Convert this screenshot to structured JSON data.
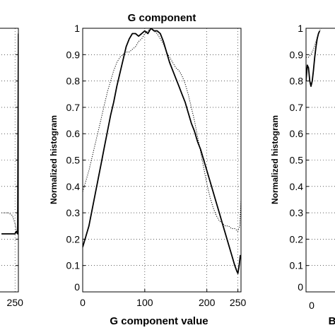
{
  "chart_data": [
    {
      "id": "left-partial",
      "type": "line",
      "title": "",
      "xlabel": "",
      "ylabel": "",
      "x_tick_labels": [
        "250"
      ],
      "xlim": [
        0,
        255
      ],
      "ylim": [
        0,
        1
      ],
      "grid": true,
      "series": [
        {
          "style": "solid",
          "x": [
            230,
            240,
            250,
            252,
            254,
            255
          ],
          "y": [
            0.22,
            0.22,
            0.22,
            0.23,
            0.22,
            0.98
          ]
        },
        {
          "style": "dotted",
          "x": [
            230,
            240,
            246,
            250,
            253
          ],
          "y": [
            0.3,
            0.3,
            0.29,
            0.26,
            0.22
          ]
        }
      ]
    },
    {
      "id": "g-component",
      "type": "line",
      "title": "G component",
      "xlabel": "G component value",
      "ylabel": "Normalized histogram",
      "x_ticks": [
        0,
        100,
        200,
        250
      ],
      "y_ticks": [
        0,
        0.1,
        0.2,
        0.3,
        0.4,
        0.5,
        0.6,
        0.7,
        0.8,
        0.9,
        1
      ],
      "xlim": [
        0,
        255
      ],
      "ylim": [
        0,
        1
      ],
      "grid": true,
      "series": [
        {
          "style": "solid",
          "x": [
            0,
            5,
            10,
            15,
            20,
            25,
            30,
            35,
            40,
            45,
            50,
            55,
            60,
            65,
            70,
            75,
            80,
            85,
            90,
            95,
            100,
            105,
            110,
            115,
            120,
            125,
            130,
            135,
            140,
            145,
            150,
            155,
            160,
            165,
            170,
            175,
            180,
            185,
            190,
            195,
            200,
            205,
            210,
            215,
            220,
            225,
            230,
            235,
            240,
            245,
            248,
            250,
            252,
            254
          ],
          "y": [
            0.17,
            0.21,
            0.25,
            0.31,
            0.37,
            0.43,
            0.49,
            0.55,
            0.61,
            0.67,
            0.72,
            0.78,
            0.83,
            0.88,
            0.93,
            0.96,
            0.98,
            0.98,
            0.97,
            0.98,
            0.99,
            0.98,
            1.0,
            0.99,
            0.99,
            0.98,
            0.95,
            0.91,
            0.87,
            0.84,
            0.81,
            0.78,
            0.75,
            0.72,
            0.68,
            0.64,
            0.61,
            0.57,
            0.54,
            0.5,
            0.46,
            0.42,
            0.38,
            0.34,
            0.3,
            0.26,
            0.22,
            0.18,
            0.14,
            0.1,
            0.08,
            0.07,
            0.1,
            0.14
          ]
        },
        {
          "style": "dotted",
          "x": [
            0,
            5,
            10,
            15,
            20,
            25,
            30,
            35,
            40,
            45,
            50,
            55,
            60,
            65,
            70,
            75,
            80,
            85,
            90,
            95,
            100,
            105,
            110,
            115,
            120,
            125,
            130,
            135,
            140,
            145,
            150,
            155,
            160,
            165,
            170,
            175,
            180,
            185,
            190,
            195,
            200,
            205,
            210,
            215,
            220,
            225,
            230,
            235,
            240,
            245,
            250,
            253,
            255
          ],
          "y": [
            0.38,
            0.42,
            0.46,
            0.51,
            0.56,
            0.61,
            0.66,
            0.71,
            0.76,
            0.8,
            0.84,
            0.87,
            0.89,
            0.9,
            0.91,
            0.91,
            0.92,
            0.93,
            0.95,
            0.96,
            0.98,
            0.99,
            1.0,
            0.99,
            0.98,
            0.96,
            0.94,
            0.91,
            0.89,
            0.87,
            0.85,
            0.84,
            0.82,
            0.79,
            0.75,
            0.7,
            0.65,
            0.59,
            0.53,
            0.47,
            0.41,
            0.36,
            0.32,
            0.29,
            0.27,
            0.26,
            0.25,
            0.25,
            0.24,
            0.24,
            0.23,
            0.25,
            0.35
          ]
        }
      ]
    },
    {
      "id": "b-partial",
      "type": "line",
      "title": "",
      "xlabel": "B",
      "ylabel": "Normalized histogram",
      "x_tick_labels": [
        "0"
      ],
      "y_ticks": [
        0,
        0.1,
        0.2,
        0.3,
        0.4,
        0.5,
        0.6,
        0.7,
        0.8,
        0.9,
        1
      ],
      "xlim": [
        0,
        255
      ],
      "ylim": [
        0,
        1
      ],
      "grid": true,
      "series": [
        {
          "style": "solid",
          "x": [
            0,
            2,
            4,
            6,
            8,
            10,
            12,
            14,
            16,
            18,
            20,
            22
          ],
          "y": [
            0.8,
            0.86,
            0.85,
            0.8,
            0.78,
            0.8,
            0.84,
            0.89,
            0.93,
            0.96,
            0.98,
            0.99
          ]
        },
        {
          "style": "dotted",
          "x": [
            0,
            4,
            8,
            12,
            16,
            20,
            24
          ],
          "y": [
            0.89,
            0.89,
            0.9,
            0.92,
            0.95,
            0.98,
            1.0
          ]
        }
      ]
    }
  ]
}
